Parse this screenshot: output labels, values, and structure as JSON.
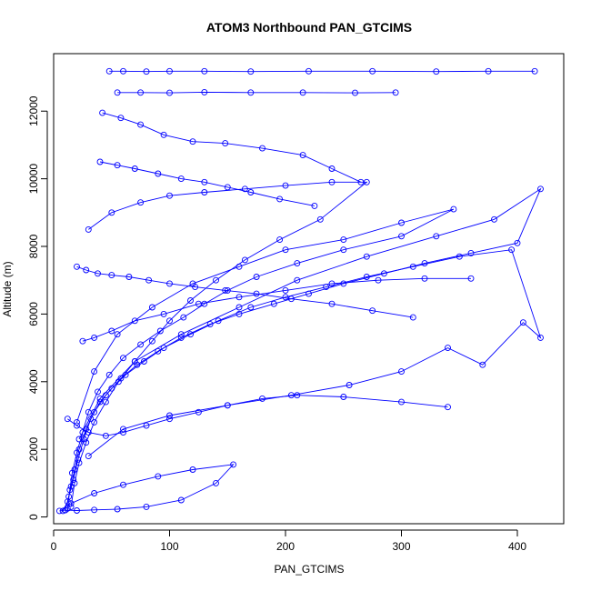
{
  "chart_data": {
    "type": "line",
    "title": "ATOM3 Northbound PAN_GTCIMS",
    "xlabel": "PAN_GTCIMS",
    "ylabel": "Altitude (m)",
    "xlim": [
      0,
      440
    ],
    "ylim": [
      -200,
      13700
    ],
    "xticks": [
      0,
      100,
      200,
      300,
      400
    ],
    "yticks": [
      0,
      2000,
      4000,
      6000,
      8000,
      10000,
      12000
    ],
    "grid": false,
    "legend": "none",
    "marker": "open-circle",
    "colors": {
      "series": "#0000ff",
      "axis": "#000000",
      "background": "#ffffff"
    },
    "series": [
      {
        "x": [
          8,
          12,
          15,
          18,
          22,
          28,
          35,
          45,
          58,
          72,
          90,
          110,
          135,
          160,
          190,
          220,
          250,
          285,
          320,
          360,
          400,
          420,
          380,
          330,
          270,
          210,
          160,
          110,
          70,
          40,
          22
        ],
        "y": [
          180,
          450,
          900,
          1400,
          2000,
          2600,
          3100,
          3600,
          4100,
          4500,
          4900,
          5300,
          5700,
          6000,
          6300,
          6600,
          6900,
          7200,
          7500,
          7800,
          8100,
          9700,
          8800,
          8300,
          7700,
          7000,
          6200,
          5400,
          4600,
          3500,
          2300
        ]
      },
      {
        "x": [
          10,
          13,
          17,
          21,
          26,
          32,
          40,
          50,
          62,
          78,
          95,
          118,
          142,
          170,
          200,
          235,
          270,
          310,
          350,
          395,
          420,
          405,
          370,
          340,
          300,
          255,
          205,
          150,
          100,
          60,
          30
        ],
        "y": [
          200,
          600,
          1100,
          1700,
          2300,
          2900,
          3400,
          3800,
          4200,
          4600,
          5000,
          5400,
          5800,
          6200,
          6500,
          6800,
          7100,
          7400,
          7700,
          7900,
          5300,
          5750,
          4500,
          5000,
          4300,
          3900,
          3600,
          3300,
          3000,
          2600,
          1800
        ]
      },
      {
        "x": [
          12,
          14,
          16,
          20,
          25,
          30,
          38,
          48,
          60,
          75,
          92,
          112,
          130,
          150,
          175,
          210,
          250,
          300,
          345,
          300,
          250,
          200,
          160,
          120,
          85,
          55,
          35,
          20
        ],
        "y": [
          250,
          800,
          1300,
          1900,
          2500,
          3100,
          3700,
          4200,
          4700,
          5100,
          5500,
          5900,
          6300,
          6700,
          7100,
          7500,
          7900,
          8300,
          9100,
          8700,
          8200,
          7900,
          7400,
          6900,
          6200,
          5400,
          4300,
          2800
        ]
      },
      {
        "x": [
          15,
          18,
          22,
          28,
          35,
          45,
          56,
          70,
          85,
          100,
          118,
          140,
          165,
          195,
          230,
          270,
          240,
          200,
          165,
          130,
          100,
          75,
          50,
          30
        ],
        "y": [
          300,
          1000,
          1600,
          2200,
          2800,
          3400,
          4000,
          4600,
          5200,
          5800,
          6400,
          7000,
          7600,
          8200,
          8800,
          9900,
          9900,
          9800,
          9700,
          9600,
          9500,
          9300,
          9000,
          8500
        ]
      },
      {
        "x": [
          48,
          60,
          80,
          100,
          130,
          170,
          220,
          275,
          330,
          375,
          415
        ],
        "y": [
          13180,
          13180,
          13170,
          13180,
          13180,
          13170,
          13180,
          13180,
          13170,
          13180,
          13180
        ]
      },
      {
        "x": [
          55,
          75,
          100,
          130,
          170,
          215,
          260,
          295
        ],
        "y": [
          12550,
          12550,
          12540,
          12560,
          12550,
          12550,
          12540,
          12550
        ]
      },
      {
        "x": [
          42,
          58,
          75,
          95,
          120,
          148,
          180,
          215,
          240,
          265
        ],
        "y": [
          11950,
          11800,
          11600,
          11300,
          11100,
          11050,
          10900,
          10700,
          10300,
          9900
        ]
      },
      {
        "x": [
          40,
          55,
          70,
          90,
          110,
          130,
          150,
          170,
          195,
          225
        ],
        "y": [
          10500,
          10400,
          10300,
          10150,
          10000,
          9900,
          9750,
          9600,
          9400,
          9200
        ]
      },
      {
        "x": [
          20,
          28,
          38,
          50,
          65,
          82,
          100,
          122,
          148,
          175,
          205,
          240,
          275,
          310
        ],
        "y": [
          7400,
          7300,
          7200,
          7150,
          7100,
          7000,
          6900,
          6800,
          6700,
          6600,
          6450,
          6300,
          6100,
          5900
        ]
      },
      {
        "x": [
          5,
          10,
          20,
          35,
          55,
          80,
          110,
          140,
          155,
          120,
          90,
          60,
          35,
          15
        ],
        "y": [
          180,
          200,
          190,
          210,
          230,
          300,
          500,
          1000,
          1550,
          1400,
          1200,
          950,
          700,
          400
        ]
      },
      {
        "x": [
          12,
          20,
          30,
          45,
          60,
          80,
          100,
          125,
          150,
          180,
          210,
          250,
          300,
          340
        ],
        "y": [
          2900,
          2700,
          2500,
          2400,
          2500,
          2700,
          2900,
          3100,
          3300,
          3500,
          3600,
          3550,
          3400,
          3250
        ]
      },
      {
        "x": [
          25,
          35,
          50,
          70,
          95,
          125,
          160,
          200,
          240,
          280,
          320,
          360
        ],
        "y": [
          5200,
          5300,
          5500,
          5800,
          6000,
          6300,
          6500,
          6700,
          6900,
          7000,
          7050,
          7050
        ]
      }
    ]
  }
}
